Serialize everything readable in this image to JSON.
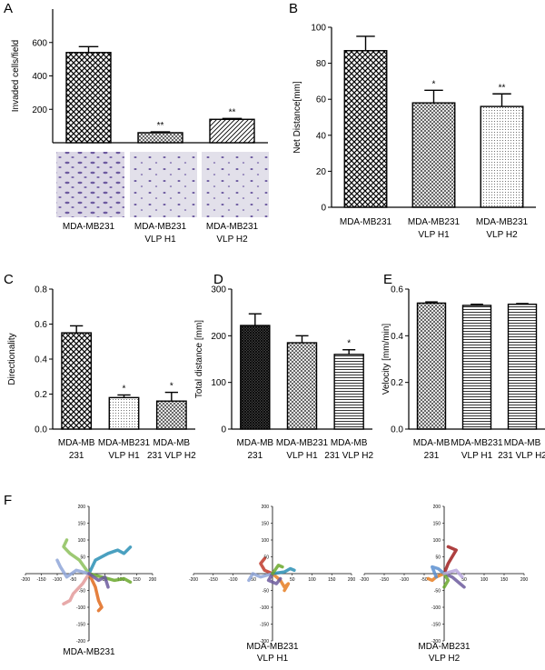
{
  "chart_data": [
    {
      "type": "bar",
      "panel": "A",
      "ylabel": "Invaded cells/field",
      "categories": [
        [
          "MDA-MB231"
        ],
        [
          "MDA-MB231",
          "VLP H1"
        ],
        [
          "MDA-MB231",
          "VLP H2"
        ]
      ],
      "values": [
        540,
        60,
        140
      ],
      "errors": [
        35,
        5,
        5
      ],
      "annotations": [
        null,
        "**",
        "**"
      ],
      "ylim": [
        0,
        800
      ],
      "yticks": [
        200,
        400,
        600
      ]
    },
    {
      "type": "bar",
      "panel": "B",
      "ylabel": "Net Distance[mm]",
      "categories": [
        [
          "MDA-MB231"
        ],
        [
          "MDA-MB231",
          "VLP H1"
        ],
        [
          "MDA-MB231",
          "VLP H2"
        ]
      ],
      "values": [
        87,
        58,
        56
      ],
      "errors": [
        8,
        7,
        7
      ],
      "annotations": [
        null,
        "*",
        "**"
      ],
      "ylim": [
        0,
        100
      ],
      "yticks": [
        0,
        20,
        40,
        60,
        80,
        100
      ]
    },
    {
      "type": "bar",
      "panel": "C",
      "ylabel": "Directionality",
      "categories": [
        [
          "MDA-MB",
          "231"
        ],
        [
          "MDA-MB231",
          "VLP H1"
        ],
        [
          "MDA-MB",
          "231 VLP H2"
        ]
      ],
      "values": [
        0.55,
        0.18,
        0.16
      ],
      "errors": [
        0.04,
        0.015,
        0.05
      ],
      "annotations": [
        null,
        "*",
        "*"
      ],
      "ylim": [
        0,
        0.8
      ],
      "yticks": [
        {
          "value": 0,
          "label": "0.0"
        },
        0.2,
        0.4,
        0.6,
        0.8
      ]
    },
    {
      "type": "bar",
      "panel": "D",
      "ylabel": "Total distance [mm]",
      "categories": [
        [
          "MDA-MB",
          "231"
        ],
        [
          "MDA-MB231",
          "VLP H1"
        ],
        [
          "MDA-MB",
          "231 VLP H2"
        ]
      ],
      "values": [
        222,
        185,
        160
      ],
      "errors": [
        25,
        15,
        10
      ],
      "annotations": [
        null,
        null,
        "*"
      ],
      "ylim": [
        0,
        300
      ],
      "yticks": [
        0,
        100,
        200,
        300
      ]
    },
    {
      "type": "bar",
      "panel": "E",
      "ylabel": "Velocity [mm/min]",
      "categories": [
        [
          "MDA-MB",
          "231"
        ],
        [
          "MDA-MB231",
          "VLP H1"
        ],
        [
          "MDA-MB",
          "231 VLP H2"
        ]
      ],
      "values": [
        0.54,
        0.53,
        0.535
      ],
      "errors": [
        0.005,
        0.005,
        0.003
      ],
      "annotations": [
        null,
        null,
        null
      ],
      "ylim": [
        0,
        0.6
      ],
      "yticks": [
        {
          "value": 0,
          "label": "0.0"
        },
        0.2,
        0.4,
        0.6
      ]
    },
    {
      "type": "line",
      "panel": "F",
      "caption": [
        "MDA-MB231"
      ],
      "xlim": [
        -200,
        200
      ],
      "ylim": [
        -200,
        200
      ],
      "xticks": [
        -200,
        -150,
        -100,
        -50,
        50,
        100,
        150,
        200
      ],
      "yticks": [
        -200,
        -150,
        -100,
        -50,
        50,
        100,
        150,
        200
      ],
      "series": [
        {
          "color": "#2a8fb5",
          "x": [
            0,
            20,
            60,
            90,
            110,
            130
          ],
          "values": [
            0,
            40,
            60,
            70,
            60,
            79
          ]
        },
        {
          "color": "#8cbf5a",
          "x": [
            0,
            -30,
            -60,
            -80,
            -70
          ],
          "values": [
            0,
            40,
            60,
            80,
            100
          ]
        },
        {
          "color": "#6aa82c",
          "x": [
            0,
            40,
            80,
            110,
            130
          ],
          "values": [
            0,
            -10,
            -20,
            -15,
            -25
          ]
        },
        {
          "color": "#e06a1c",
          "x": [
            0,
            20,
            30,
            40,
            30
          ],
          "values": [
            0,
            -40,
            -80,
            -100,
            -110
          ]
        },
        {
          "color": "#e39a9a",
          "x": [
            0,
            -20,
            -50,
            -60,
            -80
          ],
          "values": [
            0,
            -30,
            -60,
            -80,
            -90
          ]
        },
        {
          "color": "#8fa6d8",
          "x": [
            0,
            -40,
            -70,
            -90,
            -100
          ],
          "values": [
            0,
            10,
            -10,
            20,
            40
          ]
        },
        {
          "color": "#6c5a9e",
          "x": [
            0,
            30,
            50,
            60
          ],
          "values": [
            0,
            -20,
            -10,
            -40
          ]
        }
      ]
    },
    {
      "type": "line",
      "panel": null,
      "caption": [
        "MDA-MB231",
        "VLP H1"
      ],
      "xlim": [
        -200,
        200
      ],
      "ylim": [
        -200,
        200
      ],
      "xticks": [
        -200,
        -150,
        -100,
        -50,
        50,
        100,
        150,
        200
      ],
      "yticks": [
        -200,
        -150,
        -100,
        -50,
        50,
        100,
        150,
        200
      ],
      "series": [
        {
          "color": "#c0392b",
          "x": [
            0,
            -20,
            -30,
            -20
          ],
          "values": [
            0,
            10,
            30,
            45
          ]
        },
        {
          "color": "#e67e22",
          "x": [
            0,
            20,
            30,
            40,
            30
          ],
          "values": [
            0,
            -20,
            -40,
            -30,
            -50
          ]
        },
        {
          "color": "#2a8fb5",
          "x": [
            0,
            30,
            45,
            55
          ],
          "values": [
            0,
            5,
            15,
            10
          ]
        },
        {
          "color": "#8fa6d8",
          "x": [
            0,
            -30,
            -50,
            -60
          ],
          "values": [
            0,
            -10,
            0,
            -20
          ]
        },
        {
          "color": "#6c5a9e",
          "x": [
            0,
            -10,
            10,
            20
          ],
          "values": [
            0,
            -20,
            -30,
            -15
          ]
        },
        {
          "color": "#6aa82c",
          "x": [
            0,
            15,
            25
          ],
          "values": [
            0,
            25,
            20
          ]
        }
      ]
    },
    {
      "type": "line",
      "panel": null,
      "caption": [
        "MDA-MB231",
        "VLP H2"
      ],
      "xlim": [
        -200,
        200
      ],
      "ylim": [
        -200,
        200
      ],
      "xticks": [
        -200,
        -150,
        -100,
        -50,
        50,
        100,
        150,
        200
      ],
      "yticks": [
        -200,
        -150,
        -100,
        -50,
        50,
        100,
        150,
        200
      ],
      "series": [
        {
          "color": "#a01e1e",
          "x": [
            0,
            10,
            20,
            30,
            10
          ],
          "values": [
            0,
            30,
            50,
            70,
            80
          ]
        },
        {
          "color": "#e67e22",
          "x": [
            0,
            -20,
            -30,
            -40
          ],
          "values": [
            0,
            -10,
            -20,
            -15
          ]
        },
        {
          "color": "#6c5a9e",
          "x": [
            0,
            20,
            40,
            50,
            40
          ],
          "values": [
            0,
            -10,
            -30,
            -40,
            -30
          ]
        },
        {
          "color": "#5b8fd0",
          "x": [
            0,
            -15,
            -30,
            -20
          ],
          "values": [
            0,
            15,
            20,
            -10
          ]
        },
        {
          "color": "#6aa82c",
          "x": [
            0,
            10,
            0
          ],
          "values": [
            0,
            -20,
            -40
          ]
        },
        {
          "color": "#b7a6dd",
          "x": [
            0,
            30,
            45
          ],
          "values": [
            0,
            10,
            -10
          ]
        }
      ]
    }
  ]
}
